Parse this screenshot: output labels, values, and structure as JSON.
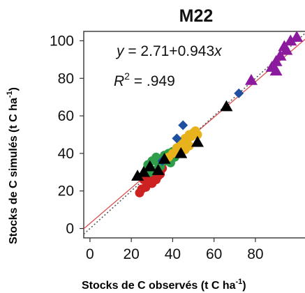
{
  "chart_data": {
    "type": "scatter",
    "title": "M22",
    "xlabel": "Stocks de C observés (t C ha",
    "xlabel_sup": "-1",
    "xlabel_close": ")",
    "ylabel": "Stocks de C simulés (t C ha",
    "ylabel_sup": "-1",
    "ylabel_close": ")",
    "xlim": [
      -3,
      105
    ],
    "ylim": [
      -5,
      105
    ],
    "xticks": [
      0,
      20,
      40,
      60,
      80
    ],
    "yticks": [
      0,
      20,
      40,
      60,
      80,
      100
    ],
    "xtick_labels": [
      "0",
      "20",
      "40",
      "60",
      "80"
    ],
    "ytick_labels": [
      "0",
      "20",
      "40",
      "60",
      "80",
      "100"
    ],
    "grid": false,
    "annotations": {
      "equation_lhs": "y",
      "equation_rhs": " = 2.71+0.943",
      "equation_var": "x",
      "r2_label": "R",
      "r2_sup": "2",
      "r2_value": " = .949"
    },
    "lines": [
      {
        "kind": "regression",
        "color": "#e05050",
        "intercept": 2.71,
        "slope": 0.943
      },
      {
        "kind": "one-to-one",
        "color": "#555555",
        "intercept": 0,
        "slope": 1
      }
    ],
    "series": [
      {
        "marker": "circle",
        "color": "#cc2222",
        "points": [
          [
            24,
            19
          ],
          [
            25,
            21
          ],
          [
            27,
            22
          ],
          [
            28,
            24
          ],
          [
            29,
            25
          ],
          [
            30,
            24
          ],
          [
            31,
            27
          ],
          [
            32,
            26
          ],
          [
            33,
            28
          ],
          [
            34,
            29
          ],
          [
            28,
            28
          ],
          [
            30,
            30
          ],
          [
            26,
            26
          ],
          [
            33,
            31
          ],
          [
            35,
            32
          ]
        ]
      },
      {
        "marker": "circle",
        "color": "#2e9e4a",
        "points": [
          [
            28,
            34
          ],
          [
            30,
            36
          ],
          [
            32,
            38
          ],
          [
            33,
            35
          ],
          [
            35,
            37
          ],
          [
            36,
            39
          ],
          [
            37,
            36
          ],
          [
            38,
            40
          ],
          [
            40,
            41
          ],
          [
            41,
            38
          ],
          [
            42,
            42
          ],
          [
            34,
            33
          ],
          [
            31,
            31
          ],
          [
            29,
            30
          ],
          [
            39,
            35
          ]
        ]
      },
      {
        "marker": "circle",
        "color": "#e8b21c",
        "points": [
          [
            38,
            38
          ],
          [
            40,
            40
          ],
          [
            42,
            43
          ],
          [
            44,
            45
          ],
          [
            45,
            46
          ],
          [
            46,
            48
          ],
          [
            47,
            47
          ],
          [
            48,
            50
          ],
          [
            49,
            49
          ],
          [
            50,
            51
          ],
          [
            51,
            52
          ],
          [
            52,
            50
          ],
          [
            48,
            44
          ],
          [
            43,
            40
          ],
          [
            46,
            42
          ]
        ]
      },
      {
        "marker": "diamond",
        "color": "#1f4fa0",
        "points": [
          [
            42,
            48
          ],
          [
            45,
            55
          ],
          [
            72,
            72
          ],
          [
            35,
            36
          ]
        ]
      },
      {
        "marker": "triangle",
        "color": "#000000",
        "points": [
          [
            23,
            28
          ],
          [
            26,
            30
          ],
          [
            29,
            33
          ],
          [
            33,
            31
          ],
          [
            36,
            37
          ],
          [
            44,
            40
          ],
          [
            52,
            46
          ],
          [
            66,
            65
          ]
        ]
      },
      {
        "marker": "triangle",
        "color": "#8b1a9e",
        "points": [
          [
            78,
            79
          ],
          [
            88,
            86
          ],
          [
            90,
            89
          ],
          [
            92,
            92
          ],
          [
            94,
            97
          ],
          [
            97,
            100
          ],
          [
            100,
            102
          ],
          [
            90,
            84
          ],
          [
            95,
            95
          ]
        ]
      }
    ]
  }
}
